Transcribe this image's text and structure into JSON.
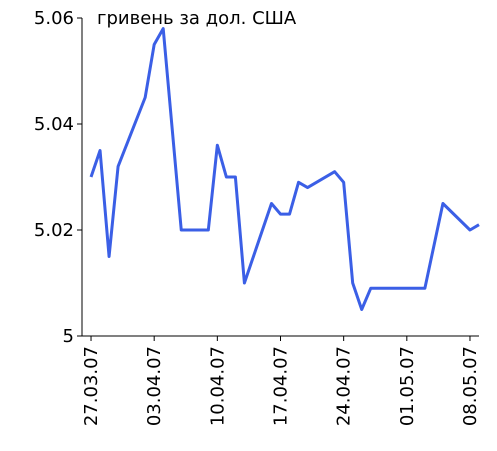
{
  "chart_data": {
    "type": "line",
    "title": "гривень за дол. США",
    "x": [
      "2007-03-27",
      "2007-03-28",
      "2007-03-29",
      "2007-03-30",
      "2007-04-02",
      "2007-04-03",
      "2007-04-04",
      "2007-04-06",
      "2007-04-09",
      "2007-04-10",
      "2007-04-11",
      "2007-04-12",
      "2007-04-13",
      "2007-04-16",
      "2007-04-17",
      "2007-04-18",
      "2007-04-19",
      "2007-04-20",
      "2007-04-23",
      "2007-04-24",
      "2007-04-25",
      "2007-04-26",
      "2007-04-27",
      "2007-05-03",
      "2007-05-04",
      "2007-05-05",
      "2007-05-08",
      "2007-05-09"
    ],
    "series": [
      {
        "color": "#3b5fe6",
        "values": [
          5.03,
          5.035,
          5.015,
          5.032,
          5.045,
          5.055,
          5.058,
          5.02,
          5.02,
          5.036,
          5.03,
          5.03,
          5.01,
          5.025,
          5.023,
          5.023,
          5.029,
          5.028,
          5.031,
          5.029,
          5.01,
          5.005,
          5.009,
          5.009,
          5.017,
          5.025,
          5.02,
          5.021
        ]
      }
    ],
    "xlim": [
      "2007-03-26",
      "2007-05-09"
    ],
    "xticks": [
      {
        "value": "2007-03-27",
        "label": "27.03.07"
      },
      {
        "value": "2007-04-03",
        "label": "03.04.07"
      },
      {
        "value": "2007-04-10",
        "label": "10.04.07"
      },
      {
        "value": "2007-04-17",
        "label": "17.04.07"
      },
      {
        "value": "2007-04-24",
        "label": "24.04.07"
      },
      {
        "value": "2007-05-01",
        "label": "01.05.07"
      },
      {
        "value": "2007-05-08",
        "label": "08.05.07"
      }
    ],
    "ylim": [
      5,
      5.06
    ],
    "yticks": [
      5,
      5.02,
      5.04,
      5.06
    ]
  }
}
